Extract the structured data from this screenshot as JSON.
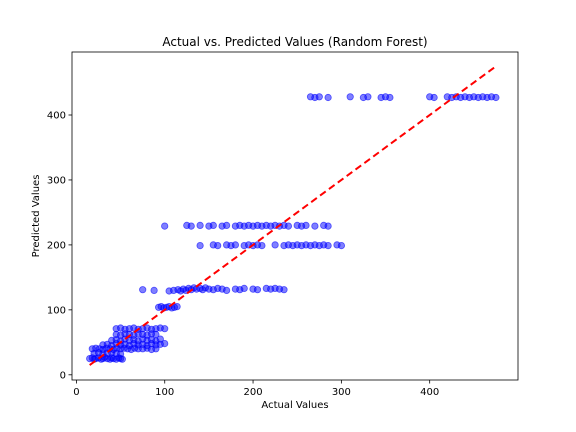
{
  "chart_data": {
    "type": "scatter",
    "title": "Actual vs. Predicted Values (Random Forest)",
    "xlabel": "Actual Values",
    "ylabel": "Predicted Values",
    "xlim": [
      -5,
      500
    ],
    "ylim": [
      -8,
      497
    ],
    "xticks": [
      0,
      100,
      200,
      300,
      400
    ],
    "yticks": [
      0,
      100,
      200,
      300,
      400
    ],
    "grid": false,
    "colors": {
      "points": "#0000ff",
      "reference_line": "#ff0000"
    },
    "reference_line": {
      "x": [
        15,
        475
      ],
      "y": [
        15,
        475
      ],
      "style": "dashed"
    },
    "series": [
      {
        "points": [
          [
            15,
            25
          ],
          [
            18,
            26
          ],
          [
            20,
            24
          ],
          [
            22,
            25
          ],
          [
            25,
            26
          ],
          [
            28,
            24
          ],
          [
            30,
            25
          ],
          [
            32,
            27
          ],
          [
            35,
            25
          ],
          [
            38,
            24
          ],
          [
            40,
            26
          ],
          [
            42,
            25
          ],
          [
            45,
            24
          ],
          [
            48,
            26
          ],
          [
            50,
            25
          ],
          [
            52,
            24
          ],
          [
            20,
            33
          ],
          [
            25,
            34
          ],
          [
            30,
            32
          ],
          [
            35,
            33
          ],
          [
            40,
            34
          ],
          [
            45,
            33
          ],
          [
            50,
            32
          ],
          [
            18,
            40
          ],
          [
            22,
            41
          ],
          [
            26,
            40
          ],
          [
            30,
            39
          ],
          [
            34,
            41
          ],
          [
            38,
            40
          ],
          [
            42,
            39
          ],
          [
            46,
            41
          ],
          [
            50,
            40
          ],
          [
            54,
            41
          ],
          [
            58,
            40
          ],
          [
            62,
            39
          ],
          [
            66,
            41
          ],
          [
            70,
            40
          ],
          [
            75,
            40
          ],
          [
            80,
            41
          ],
          [
            85,
            39
          ],
          [
            90,
            40
          ],
          [
            30,
            46
          ],
          [
            35,
            47
          ],
          [
            40,
            45
          ],
          [
            45,
            48
          ],
          [
            50,
            46
          ],
          [
            55,
            47
          ],
          [
            60,
            45
          ],
          [
            65,
            48
          ],
          [
            70,
            46
          ],
          [
            75,
            47
          ],
          [
            80,
            45
          ],
          [
            85,
            48
          ],
          [
            90,
            46
          ],
          [
            95,
            47
          ],
          [
            40,
            53
          ],
          [
            45,
            54
          ],
          [
            50,
            52
          ],
          [
            55,
            55
          ],
          [
            60,
            53
          ],
          [
            65,
            54
          ],
          [
            70,
            52
          ],
          [
            75,
            55
          ],
          [
            80,
            53
          ],
          [
            85,
            54
          ],
          [
            90,
            52
          ],
          [
            95,
            55
          ],
          [
            100,
            48
          ],
          [
            45,
            62
          ],
          [
            50,
            61
          ],
          [
            55,
            63
          ],
          [
            60,
            62
          ],
          [
            65,
            61
          ],
          [
            70,
            63
          ],
          [
            75,
            62
          ],
          [
            80,
            61
          ],
          [
            85,
            63
          ],
          [
            90,
            62
          ],
          [
            45,
            71
          ],
          [
            50,
            72
          ],
          [
            55,
            70
          ],
          [
            60,
            71
          ],
          [
            65,
            72
          ],
          [
            70,
            70
          ],
          [
            75,
            71
          ],
          [
            80,
            72
          ],
          [
            85,
            70
          ],
          [
            90,
            71
          ],
          [
            95,
            72
          ],
          [
            100,
            71
          ],
          [
            75,
            131
          ],
          [
            88,
            130
          ],
          [
            93,
            104
          ],
          [
            96,
            105
          ],
          [
            99,
            103
          ],
          [
            102,
            104
          ],
          [
            105,
            105
          ],
          [
            108,
            103
          ],
          [
            111,
            104
          ],
          [
            114,
            105
          ],
          [
            105,
            129
          ],
          [
            110,
            130
          ],
          [
            115,
            131
          ],
          [
            118,
            129
          ],
          [
            121,
            132
          ],
          [
            124,
            130
          ],
          [
            127,
            133
          ],
          [
            130,
            131
          ],
          [
            133,
            134
          ],
          [
            136,
            132
          ],
          [
            140,
            133
          ],
          [
            143,
            131
          ],
          [
            146,
            134
          ],
          [
            150,
            132
          ],
          [
            155,
            131
          ],
          [
            160,
            133
          ],
          [
            165,
            132
          ],
          [
            170,
            130
          ],
          [
            180,
            132
          ],
          [
            185,
            131
          ],
          [
            190,
            133
          ],
          [
            200,
            132
          ],
          [
            205,
            131
          ],
          [
            215,
            133
          ],
          [
            220,
            132
          ],
          [
            225,
            133
          ],
          [
            230,
            132
          ],
          [
            235,
            131
          ],
          [
            100,
            229
          ],
          [
            125,
            230
          ],
          [
            130,
            229
          ],
          [
            140,
            230
          ],
          [
            150,
            229
          ],
          [
            155,
            230
          ],
          [
            165,
            229
          ],
          [
            170,
            230
          ],
          [
            180,
            229
          ],
          [
            185,
            230
          ],
          [
            190,
            229
          ],
          [
            195,
            230
          ],
          [
            200,
            229
          ],
          [
            205,
            230
          ],
          [
            210,
            229
          ],
          [
            215,
            230
          ],
          [
            220,
            229
          ],
          [
            225,
            230
          ],
          [
            230,
            229
          ],
          [
            235,
            230
          ],
          [
            240,
            229
          ],
          [
            250,
            230
          ],
          [
            255,
            229
          ],
          [
            260,
            230
          ],
          [
            270,
            229
          ],
          [
            280,
            230
          ],
          [
            285,
            229
          ],
          [
            140,
            199
          ],
          [
            155,
            200
          ],
          [
            160,
            199
          ],
          [
            170,
            200
          ],
          [
            175,
            199
          ],
          [
            180,
            200
          ],
          [
            190,
            199
          ],
          [
            195,
            200
          ],
          [
            200,
            199
          ],
          [
            205,
            200
          ],
          [
            210,
            199
          ],
          [
            225,
            200
          ],
          [
            235,
            199
          ],
          [
            240,
            200
          ],
          [
            245,
            199
          ],
          [
            250,
            200
          ],
          [
            255,
            199
          ],
          [
            260,
            200
          ],
          [
            265,
            199
          ],
          [
            270,
            200
          ],
          [
            275,
            199
          ],
          [
            280,
            200
          ],
          [
            285,
            199
          ],
          [
            295,
            200
          ],
          [
            300,
            199
          ],
          [
            265,
            428
          ],
          [
            270,
            427
          ],
          [
            275,
            428
          ],
          [
            285,
            427
          ],
          [
            310,
            428
          ],
          [
            325,
            427
          ],
          [
            330,
            428
          ],
          [
            345,
            427
          ],
          [
            350,
            428
          ],
          [
            355,
            427
          ],
          [
            400,
            428
          ],
          [
            405,
            427
          ],
          [
            420,
            428
          ],
          [
            425,
            427
          ],
          [
            430,
            428
          ],
          [
            435,
            427
          ],
          [
            440,
            428
          ],
          [
            445,
            427
          ],
          [
            450,
            428
          ],
          [
            455,
            427
          ],
          [
            460,
            428
          ],
          [
            465,
            427
          ],
          [
            470,
            428
          ],
          [
            475,
            427
          ]
        ]
      }
    ]
  }
}
